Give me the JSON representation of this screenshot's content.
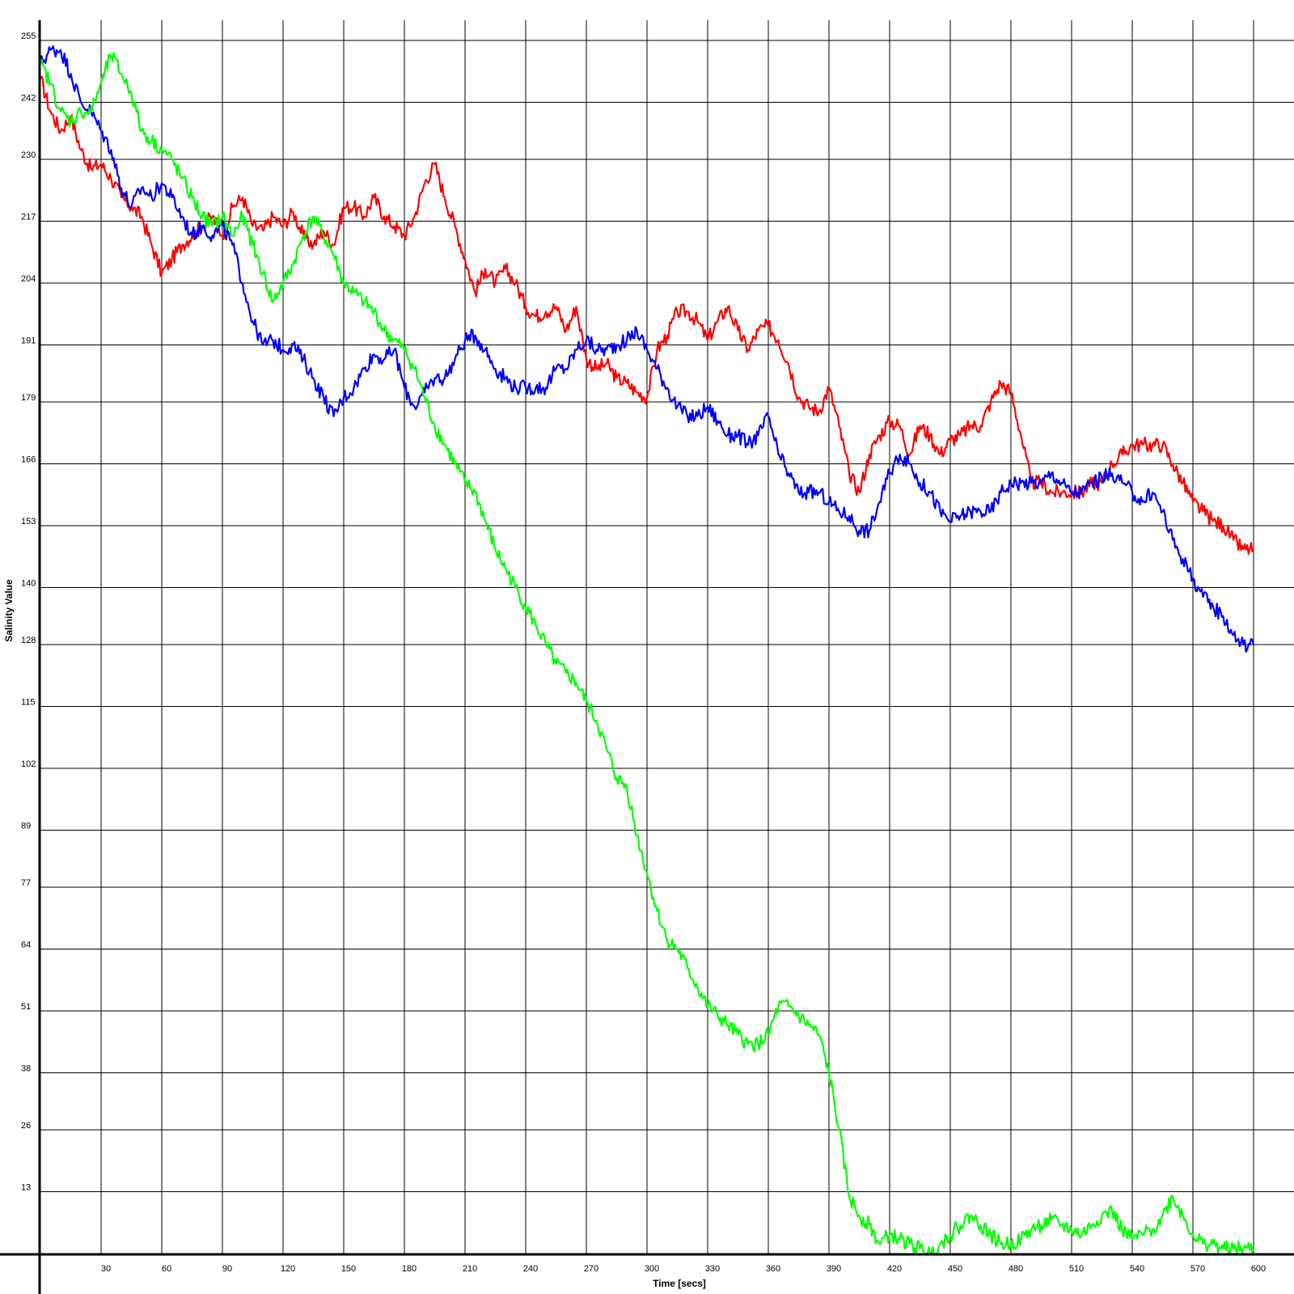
{
  "chart_data": {
    "type": "line",
    "xlabel": "Time [secs]",
    "ylabel": "Salinity Value",
    "xlim": [
      0,
      600
    ],
    "ylim": [
      0,
      255
    ],
    "x_ticks": [
      30,
      60,
      90,
      120,
      150,
      180,
      210,
      240,
      270,
      300,
      330,
      360,
      390,
      420,
      450,
      480,
      510,
      540,
      570,
      600
    ],
    "y_ticks": [
      255,
      242,
      230,
      217,
      204,
      191,
      179,
      166,
      153,
      140,
      128,
      115,
      102,
      89,
      77,
      64,
      51,
      38,
      26,
      13
    ],
    "grid": true,
    "legend": "none",
    "series": [
      {
        "color": "#ff0000",
        "x": [
          0,
          5,
          10,
          15,
          20,
          25,
          30,
          35,
          40,
          45,
          50,
          55,
          60,
          65,
          70,
          75,
          80,
          85,
          90,
          95,
          100,
          105,
          110,
          115,
          120,
          125,
          130,
          135,
          140,
          145,
          150,
          155,
          160,
          165,
          170,
          175,
          180,
          185,
          190,
          195,
          200,
          205,
          210,
          215,
          220,
          225,
          230,
          235,
          240,
          245,
          250,
          255,
          260,
          265,
          270,
          275,
          280,
          285,
          290,
          295,
          300,
          305,
          310,
          315,
          320,
          325,
          330,
          335,
          340,
          345,
          350,
          355,
          360,
          365,
          370,
          375,
          380,
          385,
          390,
          395,
          400,
          405,
          410,
          415,
          420,
          425,
          430,
          435,
          440,
          445,
          450,
          455,
          460,
          465,
          470,
          475,
          480,
          485,
          490,
          495,
          500,
          505,
          510,
          515,
          520,
          525,
          530,
          535,
          540,
          545,
          550,
          555,
          560,
          565,
          570,
          575,
          580,
          585,
          590,
          595,
          600
        ],
        "y": [
          247,
          240,
          236,
          239,
          232,
          228,
          229,
          226,
          222,
          220,
          218,
          212,
          206,
          209,
          212,
          214,
          216,
          218,
          214,
          220,
          222,
          216,
          215,
          218,
          216,
          219,
          214,
          212,
          215,
          212,
          220,
          220,
          218,
          222,
          218,
          216,
          214,
          218,
          225,
          229,
          222,
          216,
          209,
          202,
          207,
          204,
          207,
          204,
          199,
          197,
          198,
          199,
          194,
          199,
          188,
          186,
          187,
          184,
          183,
          181,
          180,
          190,
          193,
          198,
          198,
          196,
          192,
          196,
          199,
          194,
          190,
          194,
          195,
          192,
          187,
          180,
          178,
          177,
          182,
          174,
          164,
          160,
          168,
          172,
          175,
          174,
          168,
          174,
          172,
          168,
          171,
          172,
          174,
          174,
          179,
          183,
          181,
          172,
          162,
          162,
          160,
          160,
          160,
          160,
          162,
          162,
          166,
          168,
          170,
          170,
          170,
          170,
          166,
          162,
          158,
          156,
          154,
          153,
          150,
          148,
          148
        ]
      },
      {
        "color": "#0000ff",
        "x": [
          0,
          5,
          10,
          15,
          20,
          25,
          30,
          35,
          40,
          45,
          50,
          55,
          60,
          65,
          70,
          75,
          80,
          85,
          90,
          95,
          100,
          105,
          110,
          115,
          120,
          125,
          130,
          135,
          140,
          145,
          150,
          155,
          160,
          165,
          170,
          175,
          180,
          185,
          190,
          195,
          200,
          205,
          210,
          215,
          220,
          225,
          230,
          235,
          240,
          245,
          250,
          255,
          260,
          265,
          270,
          275,
          280,
          285,
          290,
          295,
          300,
          305,
          310,
          315,
          320,
          325,
          330,
          335,
          340,
          345,
          350,
          355,
          360,
          365,
          370,
          375,
          380,
          385,
          390,
          395,
          400,
          405,
          410,
          415,
          420,
          425,
          430,
          435,
          440,
          445,
          450,
          455,
          460,
          465,
          470,
          475,
          480,
          485,
          490,
          495,
          500,
          505,
          510,
          515,
          520,
          525,
          530,
          535,
          540,
          545,
          550,
          555,
          560,
          565,
          570,
          575,
          580,
          585,
          590,
          595,
          600
        ],
        "y": [
          250,
          253,
          253,
          248,
          242,
          240,
          236,
          232,
          224,
          220,
          224,
          222,
          225,
          222,
          218,
          214,
          216,
          214,
          216,
          212,
          204,
          196,
          191,
          192,
          190,
          191,
          188,
          184,
          180,
          176,
          180,
          182,
          186,
          189,
          188,
          190,
          182,
          178,
          181,
          184,
          184,
          188,
          192,
          193,
          190,
          186,
          184,
          182,
          182,
          182,
          182,
          186,
          186,
          190,
          192,
          190,
          190,
          191,
          192,
          194,
          190,
          186,
          182,
          178,
          176,
          176,
          178,
          175,
          172,
          172,
          170,
          172,
          176,
          168,
          164,
          160,
          160,
          160,
          158,
          156,
          155,
          152,
          152,
          158,
          164,
          168,
          166,
          162,
          160,
          156,
          154,
          155,
          156,
          156,
          156,
          160,
          162,
          162,
          162,
          162,
          164,
          162,
          160,
          160,
          162,
          163,
          164,
          162,
          160,
          158,
          160,
          156,
          150,
          146,
          142,
          138,
          136,
          134,
          130,
          128,
          128
        ]
      },
      {
        "color": "#00ff00",
        "x": [
          0,
          5,
          10,
          15,
          20,
          25,
          30,
          35,
          40,
          45,
          50,
          55,
          60,
          65,
          70,
          75,
          80,
          85,
          90,
          95,
          100,
          105,
          110,
          115,
          120,
          125,
          130,
          135,
          140,
          145,
          150,
          155,
          160,
          165,
          170,
          175,
          180,
          185,
          190,
          195,
          200,
          205,
          210,
          215,
          220,
          225,
          230,
          235,
          240,
          245,
          250,
          255,
          260,
          265,
          270,
          275,
          280,
          285,
          290,
          295,
          300,
          305,
          310,
          315,
          320,
          325,
          330,
          335,
          340,
          345,
          350,
          355,
          360,
          365,
          370,
          375,
          380,
          385,
          390,
          395,
          400,
          405,
          410,
          415,
          420,
          425,
          430,
          435,
          440,
          445,
          450,
          455,
          460,
          465,
          470,
          475,
          480,
          485,
          490,
          495,
          500,
          505,
          510,
          515,
          520,
          525,
          530,
          535,
          540,
          545,
          550,
          555,
          560,
          565,
          570,
          575,
          580,
          585,
          590,
          595,
          600
        ],
        "y": [
          250,
          246,
          240,
          238,
          240,
          240,
          246,
          252,
          248,
          244,
          236,
          234,
          232,
          230,
          226,
          222,
          218,
          216,
          218,
          214,
          218,
          212,
          206,
          200,
          204,
          208,
          214,
          218,
          214,
          210,
          204,
          202,
          200,
          198,
          194,
          192,
          190,
          186,
          180,
          174,
          170,
          166,
          162,
          160,
          154,
          148,
          144,
          140,
          136,
          132,
          128,
          124,
          122,
          120,
          116,
          112,
          106,
          100,
          98,
          88,
          80,
          72,
          66,
          64,
          60,
          56,
          52,
          50,
          48,
          46,
          44,
          44,
          46,
          52,
          52,
          50,
          48,
          46,
          38,
          26,
          12,
          8,
          6,
          2,
          4,
          3,
          2,
          1,
          0,
          2,
          4,
          6,
          8,
          6,
          4,
          2,
          2,
          3,
          5,
          6,
          7,
          6,
          5,
          4,
          6,
          8,
          9,
          5,
          3,
          4,
          5,
          8,
          12,
          8,
          4,
          2,
          2,
          1,
          1,
          1,
          1
        ]
      }
    ]
  }
}
